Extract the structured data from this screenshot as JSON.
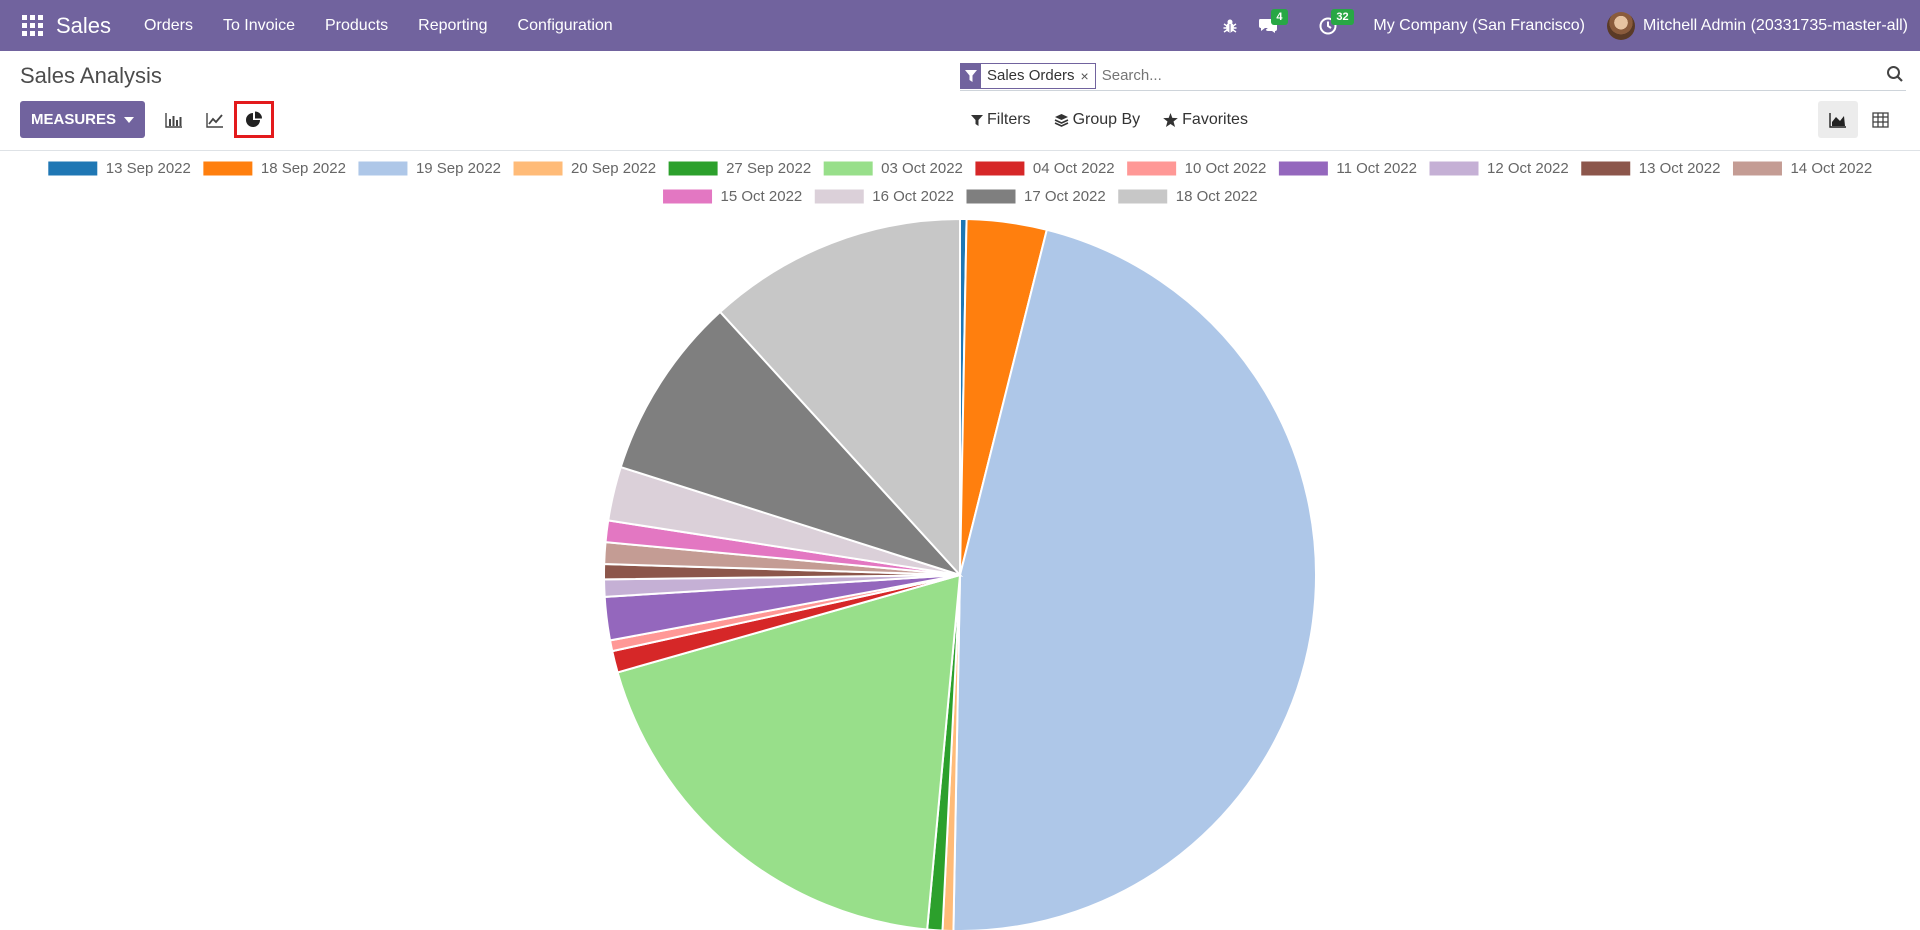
{
  "nav": {
    "brand": "Sales",
    "menu": [
      "Orders",
      "To Invoice",
      "Products",
      "Reporting",
      "Configuration"
    ],
    "messages_count": "4",
    "activities_count": "32",
    "company": "My Company (San Francisco)",
    "user": "Mitchell Admin (20331735-master-all)"
  },
  "control": {
    "title": "Sales Analysis",
    "facet_label": "Sales Orders",
    "facet_remove": "×",
    "search_placeholder": "Search...",
    "measures_label": "MEASURES",
    "filters_label": "Filters",
    "groupby_label": "Group By",
    "favorites_label": "Favorites"
  },
  "colors": {
    "navbar": "#71639e",
    "active_highlight": "#e31a1c"
  },
  "chart_data": {
    "type": "pie",
    "legend_position": "top",
    "categories": [
      "13 Sep 2022",
      "18 Sep 2022",
      "19 Sep 2022",
      "20 Sep 2022",
      "27 Sep 2022",
      "03 Oct 2022",
      "04 Oct 2022",
      "10 Oct 2022",
      "11 Oct 2022",
      "12 Oct 2022",
      "13 Oct 2022",
      "14 Oct 2022",
      "15 Oct 2022",
      "16 Oct 2022",
      "17 Oct 2022",
      "18 Oct 2022"
    ],
    "values": [
      0.3,
      3.7,
      47.3,
      0.5,
      0.7,
      19.5,
      1.0,
      0.5,
      2.0,
      0.8,
      0.7,
      1.0,
      1.0,
      2.5,
      8.5,
      12.0
    ],
    "colors": [
      "#1f77b4",
      "#ff7f0e",
      "#aec7e8",
      "#ffbb78",
      "#2ca02c",
      "#98df8a",
      "#d62728",
      "#ff9896",
      "#9467bd",
      "#c5b0d5",
      "#8c564b",
      "#c49c94",
      "#e377c2",
      "#dbd0d9",
      "#7f7f7f",
      "#c7c7c7"
    ]
  }
}
